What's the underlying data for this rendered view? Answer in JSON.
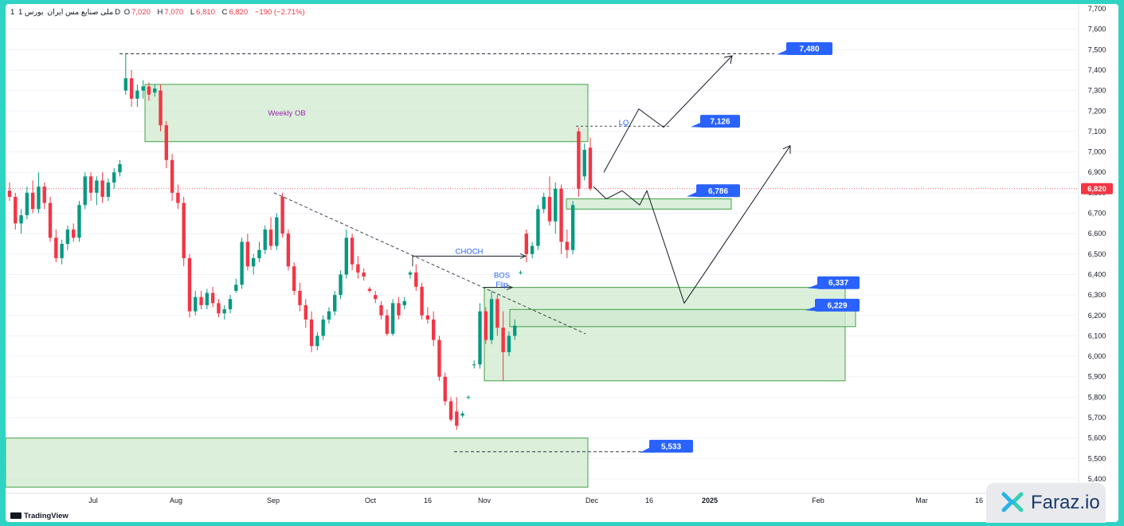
{
  "header": {
    "interval": "1",
    "symbol": "ملی صنایع مس ایران",
    "exchange": "بورس",
    "timeframe": "1D",
    "ohlc": {
      "open_label": "O",
      "open": "7,020",
      "high_label": "H",
      "high": "7,070",
      "low_label": "L",
      "low": "6,810",
      "close_label": "C",
      "close": "6,820"
    },
    "change": "−190 (−2.71%)"
  },
  "branding": {
    "tradingview": "TradingView",
    "faraz": "Faraz.io"
  },
  "colors": {
    "up": "#089981",
    "down": "#f23645",
    "zone_fill": "#cfe9cf",
    "zone_stroke": "#43a047",
    "label_bg": "#2962ff",
    "current_price": "#f23645",
    "annotation_text": "#2962ff",
    "ob_text": "#9c27b0"
  },
  "chart_data": {
    "type": "candlestick",
    "y_axis": {
      "ticks": [
        "7,700",
        "7,600",
        "7,500",
        "7,400",
        "7,300",
        "7,200",
        "7,100",
        "7,000",
        "6,900",
        "6,800",
        "6,700",
        "6,600",
        "6,500",
        "6,400",
        "6,300",
        "6,200",
        "6,100",
        "6,000",
        "5,900",
        "5,800",
        "5,700",
        "5,600",
        "5,500",
        "5,400"
      ],
      "range": [
        5360,
        7720
      ],
      "position": "right"
    },
    "x_axis": {
      "ticks": [
        "Jul",
        "Aug",
        "Sep",
        "Oct",
        "16",
        "Nov",
        "Dec",
        "16",
        "2025",
        "Feb",
        "Mar",
        "16"
      ]
    },
    "current_price": {
      "value": 6820,
      "label": "6,820"
    },
    "candles": [
      [
        6810,
        6850,
        6760,
        6780
      ],
      [
        6780,
        6800,
        6620,
        6650
      ],
      [
        6650,
        6720,
        6600,
        6690
      ],
      [
        6690,
        6830,
        6670,
        6800
      ],
      [
        6800,
        6860,
        6700,
        6720
      ],
      [
        6720,
        6900,
        6700,
        6830
      ],
      [
        6830,
        6850,
        6720,
        6750
      ],
      [
        6750,
        6780,
        6560,
        6580
      ],
      [
        6580,
        6620,
        6460,
        6480
      ],
      [
        6480,
        6570,
        6450,
        6550
      ],
      [
        6550,
        6640,
        6520,
        6620
      ],
      [
        6620,
        6650,
        6560,
        6580
      ],
      [
        6580,
        6760,
        6560,
        6740
      ],
      [
        6740,
        6900,
        6720,
        6880
      ],
      [
        6880,
        6900,
        6760,
        6800
      ],
      [
        6800,
        6880,
        6740,
        6860
      ],
      [
        6860,
        6900,
        6750,
        6780
      ],
      [
        6780,
        6870,
        6760,
        6850
      ],
      [
        6850,
        6920,
        6820,
        6900
      ],
      [
        6900,
        6960,
        6880,
        6940
      ],
      [
        7300,
        7480,
        7280,
        7360
      ],
      [
        7360,
        7400,
        7220,
        7260
      ],
      [
        7260,
        7330,
        7220,
        7300
      ],
      [
        7300,
        7350,
        7260,
        7320
      ],
      [
        7320,
        7340,
        7250,
        7280
      ],
      [
        7290,
        7330,
        7270,
        7310
      ],
      [
        7300,
        7330,
        7100,
        7130
      ],
      [
        7130,
        7150,
        6920,
        6960
      ],
      [
        6960,
        6990,
        6760,
        6800
      ],
      [
        6800,
        6840,
        6720,
        6750
      ],
      [
        6750,
        6780,
        6440,
        6480
      ],
      [
        6480,
        6500,
        6190,
        6220
      ],
      [
        6220,
        6320,
        6200,
        6290
      ],
      [
        6290,
        6320,
        6230,
        6250
      ],
      [
        6250,
        6330,
        6230,
        6310
      ],
      [
        6310,
        6340,
        6240,
        6260
      ],
      [
        6260,
        6280,
        6190,
        6210
      ],
      [
        6210,
        6250,
        6180,
        6230
      ],
      [
        6230,
        6300,
        6210,
        6280
      ],
      [
        6320,
        6380,
        6310,
        6350
      ],
      [
        6350,
        6580,
        6330,
        6560
      ],
      [
        6560,
        6600,
        6420,
        6440
      ],
      [
        6440,
        6500,
        6400,
        6480
      ],
      [
        6480,
        6560,
        6460,
        6520
      ],
      [
        6520,
        6640,
        6500,
        6620
      ],
      [
        6620,
        6680,
        6520,
        6540
      ],
      [
        6540,
        6700,
        6520,
        6680
      ],
      [
        6780,
        6800,
        6580,
        6600
      ],
      [
        6600,
        6620,
        6420,
        6440
      ],
      [
        6440,
        6460,
        6300,
        6320
      ],
      [
        6320,
        6360,
        6220,
        6250
      ],
      [
        6250,
        6280,
        6140,
        6180
      ],
      [
        6180,
        6220,
        6020,
        6050
      ],
      [
        6050,
        6120,
        6030,
        6100
      ],
      [
        6100,
        6200,
        6080,
        6180
      ],
      [
        6180,
        6240,
        6160,
        6220
      ],
      [
        6220,
        6320,
        6200,
        6300
      ],
      [
        6300,
        6420,
        6280,
        6400
      ],
      [
        6400,
        6620,
        6380,
        6580
      ],
      [
        6580,
        6600,
        6420,
        6450
      ],
      [
        6450,
        6490,
        6380,
        6410
      ],
      [
        6410,
        6430,
        6370,
        6390
      ],
      [
        6330,
        6340,
        6310,
        6320
      ],
      [
        6300,
        6320,
        6260,
        6280
      ],
      [
        6250,
        6270,
        6180,
        6200
      ],
      [
        6200,
        6230,
        6100,
        6110
      ],
      [
        6110,
        6280,
        6100,
        6260
      ],
      [
        6260,
        6290,
        6180,
        6200
      ],
      [
        6250,
        6290,
        6230,
        6270
      ],
      [
        6400,
        6420,
        6380,
        6410
      ],
      [
        6410,
        6450,
        6320,
        6340
      ],
      [
        6340,
        6360,
        6180,
        6200
      ],
      [
        6200,
        6240,
        6160,
        6180
      ],
      [
        6180,
        6220,
        6050,
        6080
      ],
      [
        6080,
        6100,
        5880,
        5900
      ],
      [
        5900,
        5920,
        5760,
        5780
      ],
      [
        5780,
        5800,
        5680,
        5690
      ],
      [
        5730,
        5800,
        5640,
        5660
      ],
      [
        5710,
        5730,
        5700,
        5720
      ],
      [
        5800,
        5810,
        5790,
        5800
      ],
      [
        5960,
        5980,
        5940,
        5960
      ],
      [
        5960,
        6260,
        5940,
        6220
      ],
      [
        6220,
        6240,
        6060,
        6080
      ],
      [
        6080,
        6320,
        6060,
        6280
      ],
      [
        6280,
        6300,
        6100,
        6140
      ],
      [
        6140,
        6220,
        5880,
        6020
      ],
      [
        6020,
        6120,
        6000,
        6100
      ],
      [
        6100,
        6180,
        6080,
        6150
      ],
      [
        6410,
        6420,
        6400,
        6410
      ],
      [
        6600,
        6620,
        6460,
        6500
      ],
      [
        6500,
        6560,
        6480,
        6540
      ],
      [
        6540,
        6740,
        6520,
        6720
      ],
      [
        6720,
        6800,
        6700,
        6780
      ],
      [
        6780,
        6880,
        6640,
        6660
      ],
      [
        6660,
        6850,
        6600,
        6820
      ],
      [
        6820,
        6840,
        6500,
        6560
      ],
      [
        6560,
        6620,
        6480,
        6520
      ],
      [
        6520,
        6760,
        6500,
        6740
      ],
      [
        7100,
        7120,
        6780,
        6820
      ],
      [
        6880,
        7040,
        6860,
        7010
      ],
      [
        7020,
        7070,
        6810,
        6820
      ]
    ],
    "zones": [
      {
        "name": "weekly-ob",
        "label": "Weekly OB",
        "top": 7330,
        "bottom": 7050
      },
      {
        "name": "support-6786",
        "top": 6770,
        "bottom": 6720
      },
      {
        "name": "demand-large",
        "top": 6337,
        "bottom": 5880
      },
      {
        "name": "demand-inner",
        "top": 6229,
        "bottom": 6145
      },
      {
        "name": "demand-bottom",
        "top": 5600,
        "bottom": 5360
      }
    ],
    "annotations": [
      {
        "name": "choch",
        "label": "CHOCH",
        "price": 6490
      },
      {
        "name": "bos",
        "label": "BOS",
        "price": 6370
      },
      {
        "name": "flip",
        "label": "Flip",
        "price": 6330
      },
      {
        "name": "lq",
        "label": "LQ",
        "price": 7126
      }
    ],
    "price_labels": [
      {
        "name": "label-7480",
        "label": "7,480",
        "value": 7480
      },
      {
        "name": "label-7126",
        "label": "7,126",
        "value": 7126
      },
      {
        "name": "label-6786",
        "label": "6,786",
        "value": 6786
      },
      {
        "name": "label-6337",
        "label": "6,337",
        "value": 6337
      },
      {
        "name": "label-6229",
        "label": "6,229",
        "value": 6229
      },
      {
        "name": "label-5533",
        "label": "5,533",
        "value": 5533
      }
    ],
    "scenario_paths": [
      {
        "name": "bullish-path",
        "points": [
          6900,
          7210,
          7120,
          7470
        ]
      },
      {
        "name": "bearish-path",
        "points": [
          6830,
          6770,
          6810,
          6740,
          6810,
          6260,
          7030
        ]
      }
    ]
  }
}
